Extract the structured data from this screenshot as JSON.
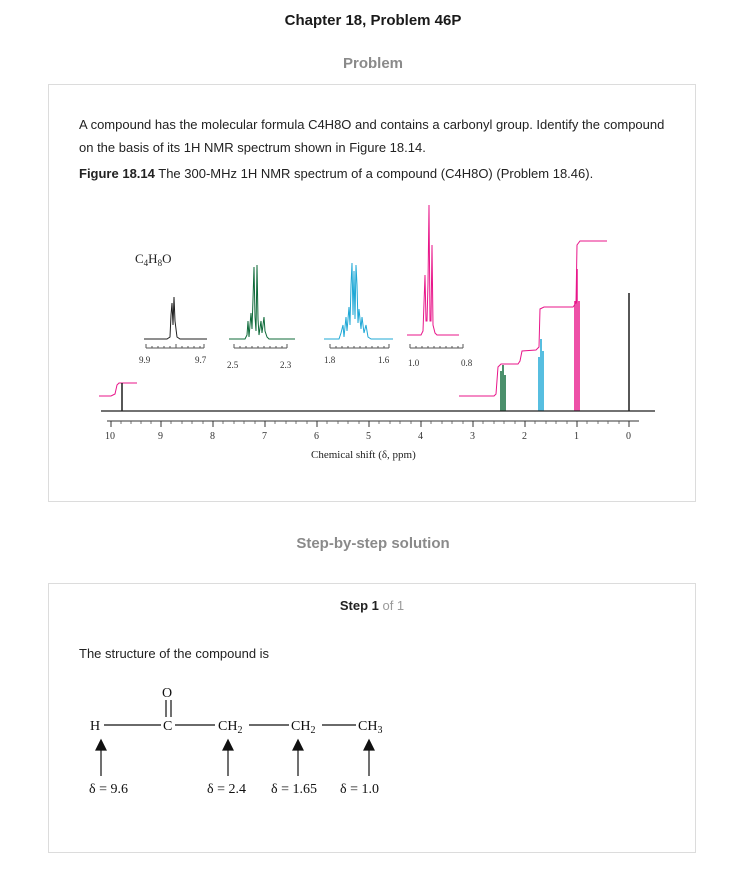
{
  "header": {
    "title": "Chapter 18, Problem 46P"
  },
  "problem": {
    "section_label": "Problem",
    "text": "A compound has the molecular formula C4H8O and contains a carbonyl group. Identify the compound on the basis of its 1H NMR spectrum shown in Figure 18.14.",
    "figure_label": "Figure 18.14",
    "figure_caption": " The 300-MHz 1H NMR spectrum of a compound (C4H8O) (Problem 18.46)."
  },
  "spectrum": {
    "formula_text": "C4H8O",
    "axis_label": "Chemical shift (δ, ppm)",
    "axis_ticks": [
      "10",
      "9",
      "8",
      "7",
      "6",
      "5",
      "4",
      "3",
      "2",
      "1",
      "0"
    ],
    "inset_ticks": [
      "9.9",
      "9.7",
      "2.5",
      "2.3",
      "1.8",
      "1.6",
      "1.0",
      "0.8"
    ],
    "colors": {
      "aldehyde": "#1f1f1f",
      "ch2_alpha": "#0f6b3a",
      "ch2_beta": "#1fa8d6",
      "ch3": "#e8168a",
      "baseline": "#1f1f1f"
    }
  },
  "solution": {
    "section_label": "Step-by-step solution",
    "step_label": "Step 1",
    "step_of": " of 1",
    "text": "The structure of the compound is",
    "structure": {
      "atom_o": "O",
      "atom_h": "H",
      "atom_c": "C",
      "group_ch2_a": "CH",
      "group_ch2_b": "CH",
      "group_ch3": "CH",
      "sub_2": "2",
      "sub_3": "3",
      "shift_h": "δ = 9.6",
      "shift_ch2_a": "δ = 2.4",
      "shift_ch2_b": "δ = 1.65",
      "shift_ch3": "δ = 1.0"
    }
  }
}
